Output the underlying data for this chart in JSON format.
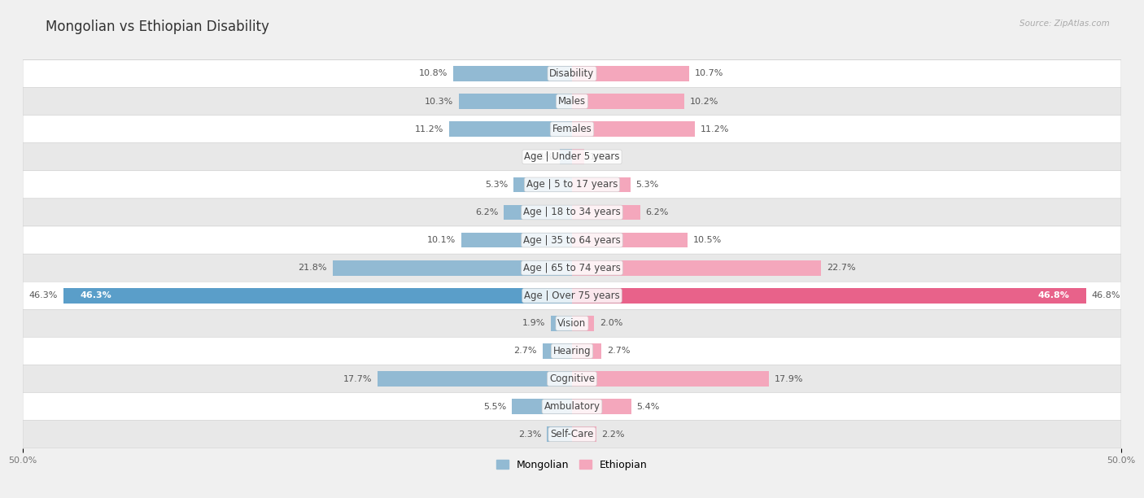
{
  "title": "Mongolian vs Ethiopian Disability",
  "source": "Source: ZipAtlas.com",
  "categories": [
    "Disability",
    "Males",
    "Females",
    "Age | Under 5 years",
    "Age | 5 to 17 years",
    "Age | 18 to 34 years",
    "Age | 35 to 64 years",
    "Age | 65 to 74 years",
    "Age | Over 75 years",
    "Vision",
    "Hearing",
    "Cognitive",
    "Ambulatory",
    "Self-Care"
  ],
  "mongolian": [
    10.8,
    10.3,
    11.2,
    1.1,
    5.3,
    6.2,
    10.1,
    21.8,
    46.3,
    1.9,
    2.7,
    17.7,
    5.5,
    2.3
  ],
  "ethiopian": [
    10.7,
    10.2,
    11.2,
    1.1,
    5.3,
    6.2,
    10.5,
    22.7,
    46.8,
    2.0,
    2.7,
    17.9,
    5.4,
    2.2
  ],
  "mongolian_color": "#92bad3",
  "ethiopian_color": "#f4a7bc",
  "ethiopian_highlight_color": "#e8628a",
  "mongolian_highlight_color": "#5a9ec9",
  "background_color": "#f0f0f0",
  "row_color_even": "#ffffff",
  "row_color_odd": "#e8e8e8",
  "axis_limit": 50.0,
  "title_fontsize": 12,
  "label_fontsize": 8.5,
  "value_fontsize": 8,
  "legend_fontsize": 9,
  "bar_height": 0.55
}
